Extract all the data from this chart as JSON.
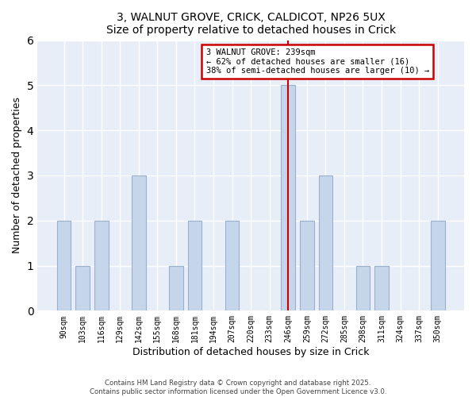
{
  "title_line1": "3, WALNUT GROVE, CRICK, CALDICOT, NP26 5UX",
  "title_line2": "Size of property relative to detached houses in Crick",
  "xlabel": "Distribution of detached houses by size in Crick",
  "ylabel": "Number of detached properties",
  "background_color": "#e8eef8",
  "bar_color": "#c5d5ea",
  "bar_edge_color": "#9ab0cc",
  "categories": [
    "90sqm",
    "103sqm",
    "116sqm",
    "129sqm",
    "142sqm",
    "155sqm",
    "168sqm",
    "181sqm",
    "194sqm",
    "207sqm",
    "220sqm",
    "233sqm",
    "246sqm",
    "259sqm",
    "272sqm",
    "285sqm",
    "298sqm",
    "311sqm",
    "324sqm",
    "337sqm",
    "350sqm"
  ],
  "values": [
    2,
    1,
    2,
    0,
    3,
    0,
    1,
    2,
    0,
    2,
    0,
    0,
    5,
    2,
    3,
    0,
    1,
    1,
    0,
    0,
    2
  ],
  "property_line_index": 12,
  "property_line_color": "#cc0000",
  "annotation_title": "3 WALNUT GROVE: 239sqm",
  "annotation_line1": "← 62% of detached houses are smaller (16)",
  "annotation_line2": "38% of semi-detached houses are larger (10) →",
  "annotation_box_color": "#ffffff",
  "annotation_box_edge": "#cc0000",
  "ylim": [
    0,
    6
  ],
  "yticks": [
    0,
    1,
    2,
    3,
    4,
    5,
    6
  ],
  "footnote1": "Contains HM Land Registry data © Crown copyright and database right 2025.",
  "footnote2": "Contains public sector information licensed under the Open Government Licence v3.0."
}
